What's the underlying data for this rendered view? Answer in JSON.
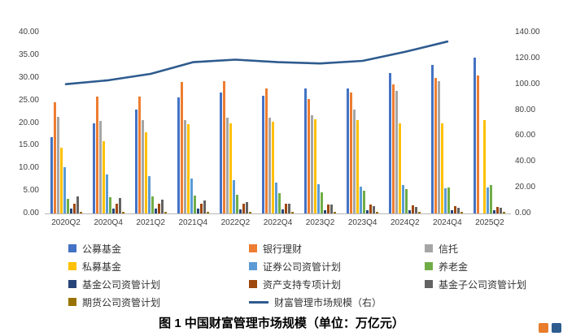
{
  "chart_data": {
    "type": "bar",
    "subtype": "grouped-bars-with-line-on-secondary-axis",
    "title": "图 1 中国财富管理市场规模（单位：万亿元）",
    "legend_position": "bottom",
    "grid": false,
    "categories": [
      "2020Q2",
      "2020Q4",
      "2021Q2",
      "2021Q4",
      "2022Q2",
      "2022Q4",
      "2023Q2",
      "2023Q4",
      "2024Q2",
      "2024Q4",
      "2025Q2"
    ],
    "series": [
      {
        "id": "public-funds",
        "name": "公募基金",
        "color": "#4472C4",
        "values": [
          16.9,
          19.9,
          23.0,
          25.6,
          26.8,
          26.0,
          27.7,
          27.6,
          31.1,
          32.8,
          34.4
        ]
      },
      {
        "id": "bank-wealth",
        "name": "银行理财",
        "color": "#ED7D31",
        "values": [
          24.5,
          25.9,
          25.8,
          29.0,
          29.2,
          27.7,
          25.3,
          26.8,
          28.5,
          29.9,
          30.5
        ]
      },
      {
        "id": "trust",
        "name": "信托",
        "color": "#A5A5A5",
        "values": [
          21.3,
          20.5,
          20.6,
          20.6,
          21.1,
          21.1,
          21.7,
          22.9,
          27.0,
          29.3,
          null
        ]
      },
      {
        "id": "private-funds",
        "name": "私募基金",
        "color": "#FFC000",
        "values": [
          14.5,
          16.0,
          17.9,
          19.8,
          20.0,
          20.3,
          20.8,
          20.6,
          19.9,
          19.9,
          20.7
        ]
      },
      {
        "id": "securities-am-plan",
        "name": "证券公司资管计划",
        "color": "#5B9BD5",
        "values": [
          10.3,
          8.6,
          8.3,
          7.7,
          7.3,
          6.9,
          6.4,
          5.9,
          6.2,
          5.6,
          5.8
        ]
      },
      {
        "id": "pension",
        "name": "养老金",
        "color": "#70AD47",
        "values": [
          3.3,
          3.5,
          3.7,
          4.0,
          4.2,
          4.5,
          4.7,
          5.0,
          5.4,
          5.7,
          6.3
        ]
      },
      {
        "id": "fund-company-am-plan",
        "name": "基金公司资管计划",
        "color": "#264478",
        "values": [
          1.0,
          1.0,
          1.0,
          1.0,
          0.9,
          0.9,
          0.8,
          0.8,
          0.8,
          0.7,
          0.7
        ]
      },
      {
        "id": "abs-special-plan",
        "name": "资产支持专项计划",
        "color": "#9E480E",
        "values": [
          2.1,
          2.1,
          2.2,
          2.2,
          2.2,
          2.1,
          2.0,
          1.9,
          1.8,
          1.6,
          1.5
        ]
      },
      {
        "id": "fund-subsidiary-am-plan",
        "name": "基金子公司资管计划",
        "color": "#636363",
        "values": [
          3.7,
          3.4,
          3.1,
          2.8,
          2.5,
          2.2,
          1.9,
          1.7,
          1.5,
          1.3,
          1.2
        ]
      },
      {
        "id": "futures-company-am-plan",
        "name": "期货公司资管计划",
        "color": "#997300",
        "values": [
          0.3,
          0.3,
          0.3,
          0.3,
          0.3,
          0.3,
          0.3,
          0.3,
          0.3,
          0.3,
          0.3
        ]
      }
    ],
    "line_series": {
      "id": "market-scale-line",
      "name": "财富管理市场规模（右）",
      "color": "#2E5B8F",
      "axis": "right",
      "values": [
        100,
        103,
        108,
        117,
        119,
        117,
        116,
        118,
        125,
        133,
        null
      ]
    },
    "left_axis": {
      "min": 0,
      "max": 40,
      "step": 5,
      "tick_labels": [
        "0.00",
        "5.00",
        "10.00",
        "15.00",
        "20.00",
        "25.00",
        "30.00",
        "35.00",
        "40.00"
      ]
    },
    "right_axis": {
      "min": 0,
      "max": 140,
      "step": 20,
      "tick_labels": [
        "0.00",
        "20.00",
        "40.00",
        "60.00",
        "80.00",
        "100.00",
        "120.00",
        "140.00"
      ]
    }
  }
}
